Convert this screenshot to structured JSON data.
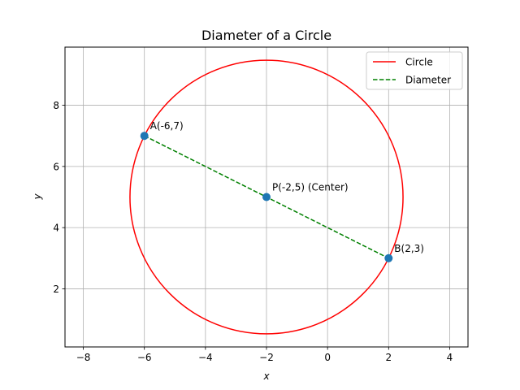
{
  "chart_data": {
    "type": "scatter",
    "title": "Diameter of a Circle",
    "xlabel": "x",
    "ylabel": "y",
    "xlim": [
      -8.6,
      4.6
    ],
    "ylim": [
      0.1,
      9.9
    ],
    "xticks": [
      -8,
      -6,
      -4,
      -2,
      0,
      2,
      4
    ],
    "yticks": [
      2,
      4,
      6,
      8
    ],
    "grid": true,
    "legend_position": "top-right",
    "circle": {
      "name": "Circle",
      "center": [
        -2,
        5
      ],
      "radius": 4.472,
      "color": "#ff0000"
    },
    "diameter": {
      "name": "Diameter",
      "from": [
        -6,
        7
      ],
      "to": [
        2,
        3
      ],
      "color": "#008000",
      "dash": true
    },
    "points": [
      {
        "x": -6,
        "y": 7,
        "label": "A(-6,7)"
      },
      {
        "x": -2,
        "y": 5,
        "label": "P(-2,5) (Center)"
      },
      {
        "x": 2,
        "y": 3,
        "label": "B(2,3)"
      }
    ],
    "point_color": "#1f77b4"
  }
}
